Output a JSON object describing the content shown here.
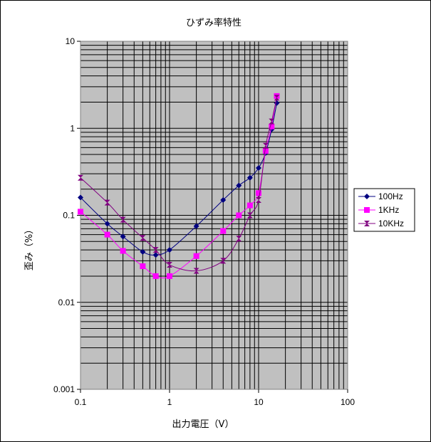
{
  "chart_data": {
    "type": "scatter",
    "title": "ひずみ率特性",
    "xlabel": "出力電圧（V）",
    "ylabel": "歪み（%）",
    "xscale": "log",
    "yscale": "log",
    "xlim": [
      0.1,
      100
    ],
    "ylim": [
      0.001,
      10
    ],
    "x_ticks": [
      "0.1",
      "1",
      "10",
      "100"
    ],
    "y_ticks": [
      "0.001",
      "0.01",
      "0.1",
      "1",
      "10"
    ],
    "grid": true,
    "legend_position": "right",
    "series": [
      {
        "name": "100Hz",
        "color": "#000080",
        "marker": "diamond",
        "x": [
          0.1,
          0.2,
          0.3,
          0.5,
          0.7,
          1,
          2,
          4,
          6,
          8,
          10,
          12,
          14,
          16
        ],
        "y": [
          0.16,
          0.08,
          0.057,
          0.038,
          0.035,
          0.04,
          0.075,
          0.15,
          0.22,
          0.27,
          0.35,
          0.52,
          0.97,
          1.95
        ]
      },
      {
        "name": "1KHz",
        "color": "#ff00ff",
        "marker": "square",
        "x": [
          0.1,
          0.2,
          0.3,
          0.5,
          0.7,
          1,
          2,
          4,
          6,
          8,
          10,
          12,
          14,
          16
        ],
        "y": [
          0.11,
          0.06,
          0.039,
          0.026,
          0.02,
          0.02,
          0.034,
          0.066,
          0.1,
          0.13,
          0.18,
          0.55,
          1.05,
          2.35
        ]
      },
      {
        "name": "10KHz",
        "color": "#800080",
        "marker": "hourglass",
        "x": [
          0.1,
          0.2,
          0.3,
          0.5,
          0.7,
          1,
          2,
          4,
          6,
          8,
          10,
          12,
          14,
          16
        ],
        "y": [
          0.27,
          0.14,
          0.089,
          0.055,
          0.04,
          0.027,
          0.023,
          0.03,
          0.054,
          0.1,
          0.15,
          0.63,
          1.2,
          2.25
        ]
      }
    ]
  }
}
